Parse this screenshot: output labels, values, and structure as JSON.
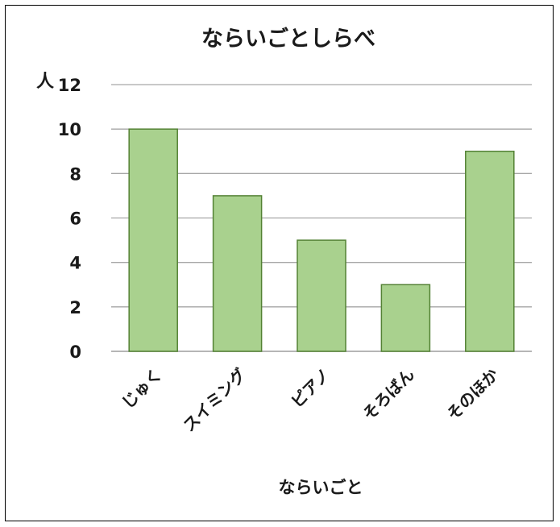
{
  "chart_data": {
    "type": "bar",
    "title": "ならいごとしらべ",
    "ylabel": "人",
    "xlabel": "ならいごと",
    "categories": [
      "じゅく",
      "スイミング",
      "ピアノ",
      "そろばん",
      "そのほか"
    ],
    "values": [
      10,
      7,
      5,
      3,
      9
    ],
    "ylim": [
      0,
      12
    ],
    "yticks": [
      0,
      2,
      4,
      6,
      8,
      10,
      12
    ],
    "grid": true,
    "legend": "none",
    "colors": {
      "bar_fill": "#a9d18e",
      "bar_stroke": "#548235",
      "grid": "#a6a6a6",
      "text": "#1a1a1a"
    }
  }
}
